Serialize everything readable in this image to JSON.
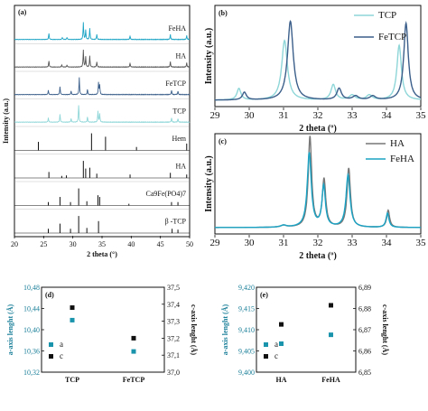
{
  "chart_data": [
    {
      "id": "a",
      "type": "line",
      "panel_label": "(a)",
      "xlabel": "2 theta (°)",
      "ylabel": "Intensity (a.u.)",
      "xlim": [
        20,
        50
      ],
      "xticks": [
        "20",
        "25",
        "30",
        "35",
        "40",
        "45",
        "50"
      ],
      "traces": [
        {
          "name": "FeHA",
          "kind": "pattern",
          "color": "#1aa3c4",
          "peaks": [
            [
              25.9,
              0.35
            ],
            [
              28.2,
              0.12
            ],
            [
              29.0,
              0.12
            ],
            [
              31.8,
              1.0
            ],
            [
              32.2,
              0.55
            ],
            [
              32.9,
              0.65
            ],
            [
              34.1,
              0.3
            ],
            [
              39.8,
              0.2
            ],
            [
              46.7,
              0.28
            ],
            [
              49.5,
              0.22
            ]
          ]
        },
        {
          "name": "HA",
          "kind": "pattern",
          "color": "#555555",
          "peaks": [
            [
              25.9,
              0.35
            ],
            [
              28.1,
              0.12
            ],
            [
              29.0,
              0.12
            ],
            [
              31.8,
              1.0
            ],
            [
              32.2,
              0.6
            ],
            [
              32.9,
              0.65
            ],
            [
              34.1,
              0.3
            ],
            [
              39.8,
              0.22
            ],
            [
              46.7,
              0.3
            ],
            [
              49.5,
              0.24
            ]
          ]
        },
        {
          "name": "FeTCP",
          "kind": "pattern",
          "color": "#3b5f8a",
          "peaks": [
            [
              25.8,
              0.25
            ],
            [
              27.8,
              0.45
            ],
            [
              29.7,
              0.2
            ],
            [
              31.1,
              1.0
            ],
            [
              32.5,
              0.3
            ],
            [
              34.4,
              0.7
            ],
            [
              34.6,
              0.55
            ],
            [
              46.9,
              0.25
            ],
            [
              48.0,
              0.2
            ]
          ]
        },
        {
          "name": "TCP",
          "kind": "pattern",
          "color": "#8ed6d8",
          "peaks": [
            [
              25.8,
              0.25
            ],
            [
              27.8,
              0.45
            ],
            [
              29.7,
              0.2
            ],
            [
              31.0,
              1.0
            ],
            [
              32.5,
              0.3
            ],
            [
              34.3,
              0.65
            ],
            [
              34.6,
              0.5
            ],
            [
              46.9,
              0.25
            ],
            [
              48.0,
              0.2
            ]
          ]
        },
        {
          "name": "Hem",
          "kind": "ref",
          "peaks": [
            [
              24.1,
              0.5
            ],
            [
              33.2,
              1.0
            ],
            [
              35.6,
              0.8
            ],
            [
              40.9,
              0.2
            ],
            [
              49.5,
              0.4
            ]
          ]
        },
        {
          "name": "HA",
          "kind": "ref",
          "peaks": [
            [
              25.9,
              0.35
            ],
            [
              28.1,
              0.12
            ],
            [
              28.9,
              0.15
            ],
            [
              31.8,
              1.0
            ],
            [
              32.2,
              0.55
            ],
            [
              32.9,
              0.6
            ],
            [
              34.1,
              0.25
            ],
            [
              39.8,
              0.2
            ],
            [
              46.7,
              0.3
            ],
            [
              49.5,
              0.2
            ]
          ]
        },
        {
          "name": "Ca9Fe(PO4)7",
          "kind": "ref",
          "peaks": [
            [
              25.8,
              0.2
            ],
            [
              27.8,
              0.5
            ],
            [
              29.6,
              0.2
            ],
            [
              31.0,
              1.0
            ],
            [
              32.4,
              0.25
            ],
            [
              34.3,
              0.6
            ],
            [
              34.6,
              0.5
            ],
            [
              39.6,
              0.1
            ],
            [
              46.9,
              0.2
            ],
            [
              48.0,
              0.2
            ]
          ]
        },
        {
          "name": "β -TCP",
          "kind": "ref",
          "peaks": [
            [
              25.8,
              0.25
            ],
            [
              27.8,
              0.55
            ],
            [
              29.6,
              0.25
            ],
            [
              31.0,
              1.0
            ],
            [
              32.4,
              0.3
            ],
            [
              34.4,
              0.7
            ],
            [
              47.0,
              0.25
            ],
            [
              48.0,
              0.2
            ]
          ]
        }
      ]
    },
    {
      "id": "b",
      "type": "line",
      "panel_label": "(b)",
      "xlabel": "2 theta (º)",
      "ylabel": "Intensity (a.u.)",
      "xlim": [
        29,
        35
      ],
      "xticks": [
        "29",
        "30",
        "31",
        "32",
        "33",
        "34",
        "35"
      ],
      "series": [
        {
          "name": "TCP",
          "color": "#8ed6d8",
          "peaks": [
            [
              29.7,
              0.12,
              0.07
            ],
            [
              31.03,
              0.62,
              0.1
            ],
            [
              32.45,
              0.16,
              0.08
            ],
            [
              33.0,
              0.05,
              0.1
            ],
            [
              33.5,
              0.05,
              0.1
            ],
            [
              34.37,
              0.57,
              0.08
            ]
          ]
        },
        {
          "name": "FeTCP",
          "color": "#3b5f8a",
          "peaks": [
            [
              29.86,
              0.08,
              0.07
            ],
            [
              31.2,
              0.82,
              0.1
            ],
            [
              32.62,
              0.12,
              0.08
            ],
            [
              33.1,
              0.04,
              0.1
            ],
            [
              33.6,
              0.04,
              0.1
            ],
            [
              34.57,
              0.8,
              0.08
            ]
          ]
        }
      ]
    },
    {
      "id": "c",
      "type": "line",
      "panel_label": "(c)",
      "xlabel": "2 theta (º)",
      "ylabel": "Intensity (a.u.)",
      "xlim": [
        29,
        35
      ],
      "xticks": [
        "29",
        "30",
        "31",
        "32",
        "33",
        "34",
        "35"
      ],
      "series": [
        {
          "name": "HA",
          "color": "#777777",
          "peaks": [
            [
              31.0,
              0.02,
              0.1
            ],
            [
              31.77,
              0.95,
              0.06
            ],
            [
              32.18,
              0.5,
              0.06
            ],
            [
              32.9,
              0.62,
              0.06
            ],
            [
              34.05,
              0.18,
              0.05
            ]
          ]
        },
        {
          "name": "FeHA",
          "color": "#1aa3c4",
          "peaks": [
            [
              31.0,
              0.02,
              0.1
            ],
            [
              31.75,
              0.78,
              0.07
            ],
            [
              32.17,
              0.43,
              0.06
            ],
            [
              32.88,
              0.55,
              0.07
            ],
            [
              34.03,
              0.15,
              0.05
            ]
          ]
        }
      ]
    },
    {
      "id": "d",
      "type": "scatter",
      "panel_label": "(d)",
      "categories": [
        "TCP",
        "FeTCP"
      ],
      "ylabel": "a-axis lenght (Å)",
      "y2label": "c-axis lenght (Å)",
      "ylim": [
        10.32,
        10.48
      ],
      "yticks": [
        "10,32",
        "10,36",
        "10,40",
        "10,44",
        "10,48"
      ],
      "y2lim": [
        37.0,
        37.5
      ],
      "y2ticks": [
        "37,0",
        "37,1",
        "37,2",
        "37,3",
        "37,4",
        "37,5"
      ],
      "series": [
        {
          "name": "a",
          "axis": "left",
          "color": "#1a93ad",
          "values": [
            10.418,
            10.359
          ]
        },
        {
          "name": "c",
          "axis": "right",
          "color": "#111111",
          "values": [
            37.38,
            37.2
          ]
        }
      ]
    },
    {
      "id": "e",
      "type": "scatter",
      "panel_label": "(e)",
      "categories": [
        "HA",
        "FeHA"
      ],
      "ylabel": "a-axis lenght (Å)",
      "y2label": "c-axis lenght (Å)",
      "ylim": [
        9.4,
        9.42
      ],
      "yticks": [
        "9,400",
        "9,405",
        "9,410",
        "9,415",
        "9,420"
      ],
      "y2lim": [
        6.85,
        6.89
      ],
      "y2ticks": [
        "6,85",
        "6,86",
        "6,87",
        "6,88",
        "6,89"
      ],
      "series": [
        {
          "name": "a",
          "axis": "left",
          "color": "#1a93ad",
          "values": [
            9.4067,
            9.4088
          ]
        },
        {
          "name": "c",
          "axis": "right",
          "color": "#111111",
          "values": [
            6.8725,
            6.8815
          ]
        }
      ]
    }
  ]
}
